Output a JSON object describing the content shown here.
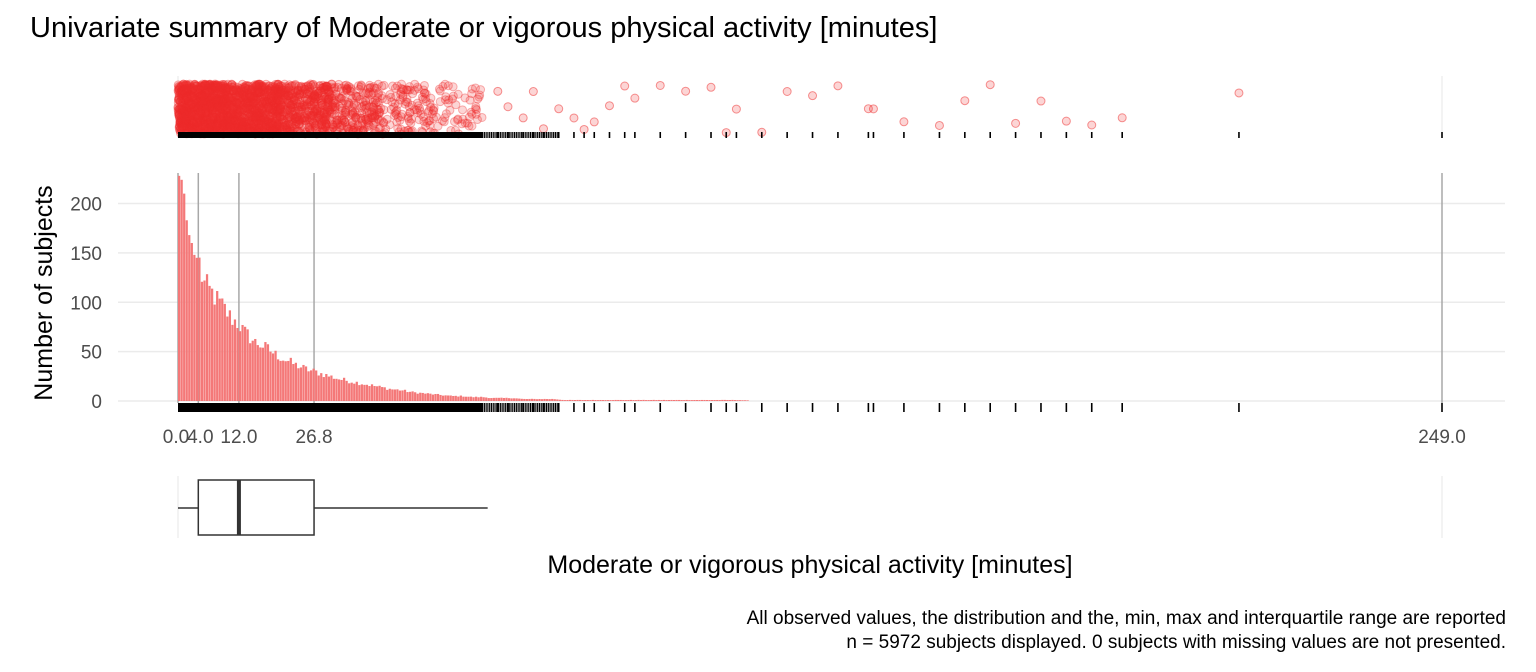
{
  "chart_data": {
    "type": "histogram",
    "title": "Univariate summary of Moderate or vigorous physical activity [minutes]",
    "xlabel": "Moderate or vigorous physical activity [minutes]",
    "ylabel": "Number of subjects",
    "xlim": [
      0,
      249
    ],
    "ylim": [
      0,
      240
    ],
    "yticks": [
      0,
      50,
      100,
      150,
      200
    ],
    "ytick_labels": [
      "0",
      "50",
      "100",
      "150",
      "200"
    ],
    "reference_lines": [
      0.0,
      4.0,
      12.0,
      26.8,
      249.0
    ],
    "reference_labels": [
      "0.0",
      "4.0",
      "12.0",
      "26.8",
      "249.0"
    ],
    "summary": {
      "min": 0.0,
      "q1": 4.0,
      "median": 12.0,
      "q3": 26.8,
      "max": 249.0,
      "whisker_high": 61.0
    },
    "bin_width": 0.5,
    "histogram": {
      "x": [
        0.25,
        0.75,
        1.25,
        1.75,
        2.25,
        2.75,
        3.25,
        3.75,
        4.25,
        5,
        6,
        7,
        8,
        9,
        10,
        11,
        12,
        13,
        14,
        15,
        16,
        17,
        18,
        19,
        20,
        21,
        22,
        23,
        24,
        25,
        26,
        27,
        28,
        30,
        32,
        34,
        36,
        38,
        40,
        42,
        44,
        46,
        48,
        50,
        52,
        54,
        56,
        58,
        60,
        62,
        64,
        66,
        68,
        70,
        72,
        74,
        76,
        78,
        80,
        85,
        90,
        95,
        100,
        105,
        110,
        115,
        120,
        125,
        130,
        140,
        150
      ],
      "y": [
        228,
        224,
        210,
        183,
        168,
        160,
        148,
        145,
        140,
        120,
        113,
        108,
        100,
        95,
        87,
        82,
        78,
        70,
        66,
        60,
        58,
        55,
        52,
        48,
        45,
        42,
        40,
        37,
        35,
        33,
        31,
        30,
        28,
        25,
        22,
        20,
        18,
        16,
        14,
        12,
        11,
        9,
        8,
        7,
        6,
        5,
        5,
        4,
        4,
        3,
        3,
        3,
        2,
        2,
        2,
        2,
        1,
        1,
        1,
        1,
        1,
        1,
        1,
        1,
        1,
        0,
        0,
        0,
        0,
        0,
        0
      ]
    },
    "outlier_points": [
      63,
      65,
      68,
      70,
      72,
      75,
      78,
      80,
      82,
      85,
      88,
      90,
      95,
      100,
      105,
      108,
      110,
      115,
      120,
      125,
      130,
      136,
      137,
      143,
      150,
      155,
      160,
      165,
      170,
      175,
      180,
      186,
      209
    ],
    "annotation_lines": [
      "All observed values, the distribution and the, min, max and interquartile range are reported",
      "n = 5972 subjects displayed. 0 subjects with missing values are not presented."
    ],
    "colors": {
      "points": "#ee2c2c",
      "histogram": "#f47878",
      "lines": "#a8a8a8",
      "grid": "#ebebeb",
      "rug": "#000000",
      "box": "#333333"
    },
    "grid": true,
    "legend": "none"
  }
}
